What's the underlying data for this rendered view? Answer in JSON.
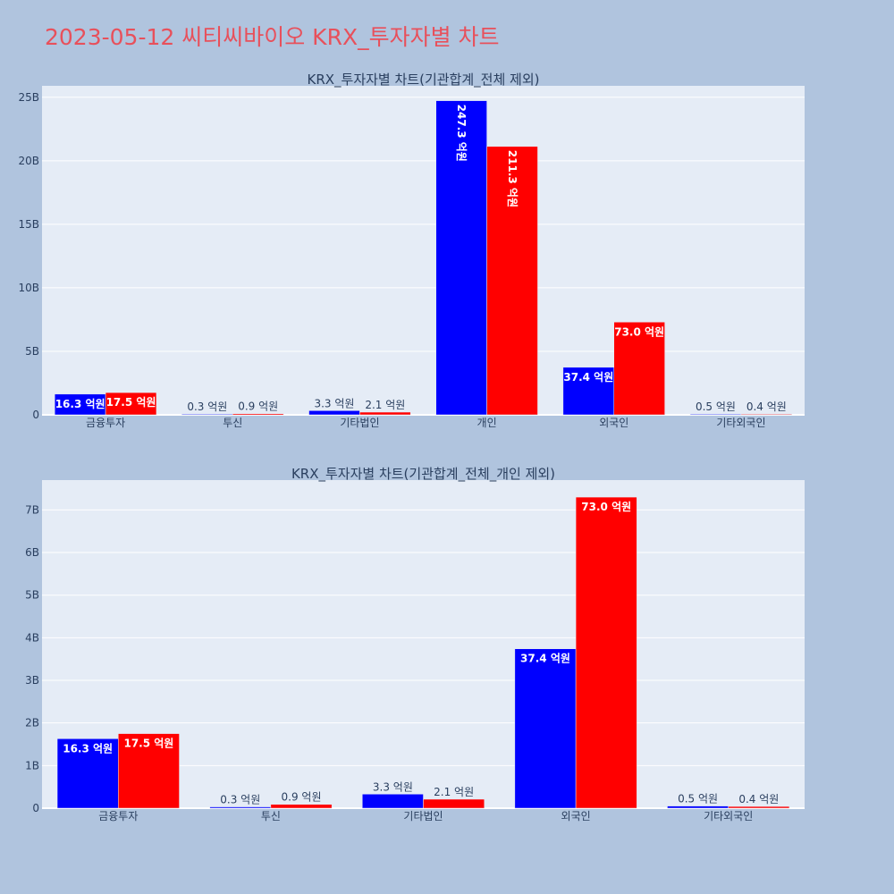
{
  "page_title": "2023-05-12 씨티씨바이오 KRX_투자자별 차트",
  "colors": {
    "buy": "#0000ff",
    "sell": "#ff0000",
    "background": "#b0c4de",
    "plot_bg": "#e5ecf6",
    "title": "#e8505b"
  },
  "chart_data": [
    {
      "type": "bar",
      "title": "KRX_투자자별 차트(기관합계_전체 제외)",
      "categories": [
        "금융투자",
        "투신",
        "기타법인",
        "개인",
        "외국인",
        "기타외국인"
      ],
      "series": [
        {
          "values": [
            1.63,
            0.03,
            0.33,
            24.73,
            3.74,
            0.05
          ],
          "labels": [
            "16.3 억원",
            "0.3 억원",
            "3.3 억원",
            "247.3 억원",
            "37.4 억원",
            "0.5 억원"
          ]
        },
        {
          "values": [
            1.75,
            0.09,
            0.21,
            21.13,
            7.3,
            0.04
          ],
          "labels": [
            "17.5 억원",
            "0.9 억원",
            "2.1 억원",
            "211.3 억원",
            "73.0 억원",
            "0.4 억원"
          ]
        }
      ],
      "ylim": [
        0,
        25.9
      ],
      "yticks": [
        0,
        5,
        10,
        15,
        20,
        25
      ],
      "yticklabels": [
        "0",
        "5B",
        "10B",
        "15B",
        "20B",
        "25B"
      ],
      "grid": true
    },
    {
      "type": "bar",
      "title": "KRX_투자자별 차트(기관합계_전체_개인 제외)",
      "categories": [
        "금융투자",
        "투신",
        "기타법인",
        "외국인",
        "기타외국인"
      ],
      "series": [
        {
          "values": [
            1.63,
            0.03,
            0.33,
            3.74,
            0.05
          ],
          "labels": [
            "16.3 억원",
            "0.3 억원",
            "3.3 억원",
            "37.4 억원",
            "0.5 억원"
          ]
        },
        {
          "values": [
            1.75,
            0.09,
            0.21,
            7.3,
            0.04
          ],
          "labels": [
            "17.5 억원",
            "0.9 억원",
            "2.1 억원",
            "73.0 억원",
            "0.4 억원"
          ]
        }
      ],
      "ylim": [
        0,
        7.7
      ],
      "yticks": [
        0,
        1,
        2,
        3,
        4,
        5,
        6,
        7
      ],
      "yticklabels": [
        "0",
        "1B",
        "2B",
        "3B",
        "4B",
        "5B",
        "6B",
        "7B"
      ],
      "grid": true
    }
  ]
}
